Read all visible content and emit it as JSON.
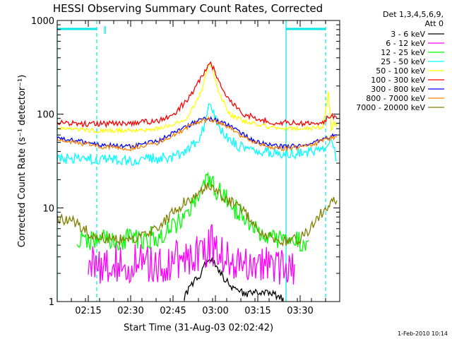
{
  "chart_data": {
    "type": "line",
    "title": "HESSI Observing Summary Count Rates, Corrected",
    "xlabel": "Start Time (31-Aug-03 02:02:42)",
    "ylabel": "Corrected Count Rate (s⁻¹ detector⁻¹)",
    "y_scale": "log",
    "ylim": [
      1,
      1000
    ],
    "xlim": [
      "02:04",
      "03:44"
    ],
    "grid": false,
    "x_ticks": [
      "02:15",
      "02:30",
      "02:45",
      "03:00",
      "03:15",
      "03:30"
    ],
    "y_ticks": [
      "1",
      "10",
      "100",
      "1000"
    ],
    "legend_title": [
      "Det 1,3,4,5,6,9,",
      "Att 0"
    ],
    "legend_position": "right, outside plot",
    "footer": "1-Feb-2010 10:14",
    "flag_markers": {
      "color": "#00e5e5",
      "vertical_dashed_at": [
        "02:18",
        "03:39"
      ],
      "vertical_solid_at": [
        "02:04",
        "03:25"
      ],
      "top_bar_ranges": [
        [
          "02:04",
          "02:18"
        ],
        [
          "03:25",
          "03:39"
        ]
      ],
      "top_bar_glyph": "‖"
    },
    "series": [
      {
        "name": "3 - 6 keV",
        "color": "#000000",
        "x": [
          "02:49",
          "02:52",
          "02:55",
          "02:57",
          "02:58",
          "03:00",
          "03:03",
          "03:07",
          "03:12",
          "03:15",
          "03:20",
          "03:24"
        ],
        "y": [
          1.1,
          1.6,
          2.0,
          2.7,
          2.9,
          2.5,
          1.8,
          1.3,
          1.2,
          1.3,
          1.2,
          1.1
        ]
      },
      {
        "name": "6 - 12 keV",
        "color": "#ff00ff",
        "x": [
          "02:15",
          "02:20",
          "02:30",
          "02:40",
          "02:45",
          "02:50",
          "02:55",
          "02:58",
          "03:00",
          "03:05",
          "03:10",
          "03:15",
          "03:20",
          "03:25",
          "03:28"
        ],
        "y": [
          2.5,
          2.5,
          2.5,
          2.5,
          2.6,
          3.0,
          3.5,
          4.2,
          3.8,
          3.0,
          2.6,
          2.5,
          2.5,
          2.5,
          2.5
        ]
      },
      {
        "name": "12 - 25 keV",
        "color": "#00ff00",
        "x": [
          "02:11",
          "02:20",
          "02:30",
          "02:40",
          "02:45",
          "02:50",
          "02:54",
          "02:57",
          "02:58",
          "03:00",
          "03:05",
          "03:10",
          "03:15",
          "03:20",
          "03:30",
          "03:33"
        ],
        "y": [
          4.5,
          4.5,
          4.5,
          5.0,
          6.5,
          9.0,
          13,
          18,
          19,
          16,
          11,
          8.0,
          5.5,
          4.5,
          4.5,
          4.5
        ]
      },
      {
        "name": "25 - 50 keV",
        "color": "#00ffff",
        "x": [
          "02:04",
          "02:15",
          "02:30",
          "02:45",
          "02:50",
          "02:55",
          "02:57",
          "02:58",
          "02:59",
          "03:02",
          "03:08",
          "03:15",
          "03:25",
          "03:33",
          "03:38",
          "03:41",
          "03:43"
        ],
        "y": [
          33,
          33,
          32,
          35,
          42,
          60,
          100,
          125,
          110,
          65,
          45,
          40,
          38,
          39,
          42,
          60,
          32
        ]
      },
      {
        "name": "50 - 100 keV",
        "color": "#ffff00",
        "x": [
          "02:04",
          "02:10",
          "02:20",
          "02:30",
          "02:40",
          "02:50",
          "02:55",
          "02:57",
          "02:58",
          "02:59",
          "03:01",
          "03:05",
          "03:10",
          "03:20",
          "03:30",
          "03:38",
          "03:40",
          "03:41",
          "03:42",
          "03:43"
        ],
        "y": [
          70,
          68,
          67,
          67,
          70,
          90,
          170,
          300,
          350,
          300,
          180,
          100,
          85,
          72,
          70,
          72,
          170,
          70,
          80,
          75
        ]
      },
      {
        "name": "100 - 300 keV",
        "color": "#ff0000",
        "x": [
          "02:04",
          "02:15",
          "02:30",
          "02:40",
          "02:45",
          "02:50",
          "02:54",
          "02:57",
          "02:58",
          "02:59",
          "03:02",
          "03:06",
          "03:10",
          "03:20",
          "03:30",
          "03:38",
          "03:41",
          "03:43"
        ],
        "y": [
          82,
          78,
          80,
          85,
          100,
          140,
          220,
          320,
          350,
          320,
          200,
          130,
          100,
          82,
          80,
          82,
          100,
          90
        ]
      },
      {
        "name": "300 - 800 keV",
        "color": "#0000ff",
        "x": [
          "02:04",
          "02:10",
          "02:20",
          "02:30",
          "02:40",
          "02:50",
          "02:55",
          "02:58",
          "03:00",
          "03:05",
          "03:10",
          "03:15",
          "03:20",
          "03:25",
          "03:30",
          "03:35",
          "03:40",
          "03:43"
        ],
        "y": [
          55,
          52,
          47,
          45,
          52,
          75,
          88,
          90,
          86,
          75,
          60,
          50,
          46,
          45,
          46,
          50,
          57,
          60
        ]
      },
      {
        "name": "800 - 7000 keV",
        "color": "#ff8000",
        "x": [
          "02:04",
          "02:10",
          "02:20",
          "02:30",
          "02:40",
          "02:50",
          "02:55",
          "02:58",
          "03:00",
          "03:05",
          "03:10",
          "03:15",
          "03:20",
          "03:25",
          "03:30",
          "03:35",
          "03:40",
          "03:43"
        ],
        "y": [
          53,
          50,
          45,
          43,
          50,
          72,
          85,
          88,
          84,
          72,
          57,
          48,
          44,
          43,
          44,
          48,
          55,
          57
        ]
      },
      {
        "name": "7000 - 20000 keV",
        "color": "#808000",
        "x": [
          "02:04",
          "02:10",
          "02:15",
          "02:20",
          "02:30",
          "02:40",
          "02:45",
          "02:50",
          "02:55",
          "02:58",
          "03:00",
          "03:05",
          "03:10",
          "03:15",
          "03:20",
          "03:25",
          "03:30",
          "03:35",
          "03:40",
          "03:43"
        ],
        "y": [
          8,
          7,
          5.5,
          4.8,
          4.5,
          6,
          9,
          12,
          15,
          17,
          15.5,
          12,
          9,
          6,
          4.6,
          4.5,
          4.6,
          7,
          11,
          12
        ]
      }
    ]
  }
}
